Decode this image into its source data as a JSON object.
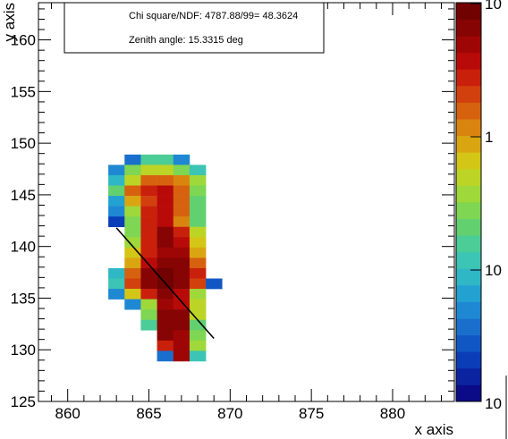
{
  "chart_data": {
    "type": "heatmap",
    "title": "",
    "xlabel": "x axis",
    "ylabel": "y axis",
    "xlim": [
      858.2,
      883.8
    ],
    "ylim": [
      125,
      163.6
    ],
    "x_ticks": [
      "860",
      "865",
      "870",
      "875",
      "880"
    ],
    "x_tick_values": [
      860,
      865,
      870,
      875,
      880
    ],
    "y_ticks": [
      "125",
      "130",
      "135",
      "140",
      "145",
      "150",
      "155",
      "160"
    ],
    "y_tick_values": [
      125,
      130,
      135,
      140,
      145,
      150,
      155,
      160
    ],
    "bin_width_x": 1,
    "bin_width_y": 1,
    "x_edges_start": 862.5,
    "y_edges_start": 128.9,
    "color_scale": "log",
    "palette": [
      "#0b0b88",
      "#0b239f",
      "#0b3db6",
      "#1157c4",
      "#1b6fcc",
      "#1f88d2",
      "#23a1d0",
      "#2fb7c6",
      "#3cc4b4",
      "#4ccc97",
      "#62d06f",
      "#7ed653",
      "#9ed83a",
      "#bcd426",
      "#d4c617",
      "#d9a612",
      "#da8410",
      "#d6620f",
      "#d2400e",
      "#c9200c",
      "#b80a09",
      "#9e0606",
      "#860404",
      "#710202"
    ],
    "colorbar_labels": [
      "10",
      "1",
      "10",
      "10"
    ],
    "cells": [
      [
        863,
        148,
        4
      ],
      [
        864,
        148,
        9
      ],
      [
        865,
        148,
        9
      ],
      [
        866,
        148,
        5
      ],
      [
        862,
        147,
        5
      ],
      [
        863,
        147,
        11
      ],
      [
        864,
        147,
        13
      ],
      [
        865,
        147,
        13
      ],
      [
        866,
        147,
        11
      ],
      [
        867,
        147,
        8
      ],
      [
        862,
        146,
        7
      ],
      [
        863,
        146,
        13
      ],
      [
        864,
        146,
        17
      ],
      [
        865,
        146,
        17
      ],
      [
        866,
        146,
        16
      ],
      [
        867,
        146,
        12
      ],
      [
        862,
        145,
        10
      ],
      [
        863,
        145,
        17
      ],
      [
        864,
        145,
        19
      ],
      [
        865,
        145,
        20
      ],
      [
        866,
        145,
        17
      ],
      [
        867,
        145,
        11
      ],
      [
        862,
        144,
        6
      ],
      [
        863,
        144,
        15
      ],
      [
        864,
        144,
        18
      ],
      [
        865,
        144,
        20
      ],
      [
        866,
        144,
        17
      ],
      [
        867,
        144,
        10
      ],
      [
        862,
        143,
        5
      ],
      [
        863,
        143,
        12
      ],
      [
        864,
        143,
        19
      ],
      [
        865,
        143,
        20
      ],
      [
        866,
        143,
        17
      ],
      [
        867,
        143,
        10
      ],
      [
        862,
        142,
        2
      ],
      [
        863,
        142,
        11
      ],
      [
        864,
        142,
        19
      ],
      [
        865,
        142,
        20
      ],
      [
        866,
        142,
        16
      ],
      [
        867,
        142,
        10
      ],
      [
        863,
        141,
        11
      ],
      [
        864,
        141,
        19
      ],
      [
        865,
        141,
        22
      ],
      [
        866,
        141,
        19
      ],
      [
        867,
        141,
        13
      ],
      [
        863,
        140,
        12
      ],
      [
        864,
        140,
        19
      ],
      [
        865,
        140,
        22
      ],
      [
        866,
        140,
        20
      ],
      [
        867,
        140,
        14
      ],
      [
        863,
        139,
        14
      ],
      [
        864,
        139,
        19
      ],
      [
        865,
        139,
        21
      ],
      [
        866,
        139,
        21
      ],
      [
        867,
        139,
        15
      ],
      [
        863,
        138,
        15
      ],
      [
        864,
        138,
        20
      ],
      [
        865,
        138,
        22
      ],
      [
        866,
        138,
        22
      ],
      [
        867,
        138,
        17
      ],
      [
        862,
        137,
        7
      ],
      [
        863,
        137,
        17
      ],
      [
        864,
        137,
        22
      ],
      [
        865,
        137,
        23
      ],
      [
        866,
        137,
        22
      ],
      [
        867,
        137,
        19
      ],
      [
        862,
        136,
        8
      ],
      [
        863,
        136,
        18
      ],
      [
        864,
        136,
        22
      ],
      [
        865,
        136,
        23
      ],
      [
        866,
        136,
        22
      ],
      [
        867,
        136,
        18
      ],
      [
        868,
        136,
        3
      ],
      [
        862,
        135,
        5
      ],
      [
        863,
        135,
        14
      ],
      [
        864,
        135,
        19
      ],
      [
        865,
        135,
        22
      ],
      [
        866,
        135,
        20
      ],
      [
        867,
        135,
        12
      ],
      [
        863,
        134,
        5
      ],
      [
        864,
        134,
        12
      ],
      [
        865,
        134,
        21
      ],
      [
        866,
        134,
        20
      ],
      [
        867,
        134,
        13
      ],
      [
        864,
        133,
        11
      ],
      [
        865,
        133,
        22
      ],
      [
        866,
        133,
        22
      ],
      [
        867,
        133,
        13
      ],
      [
        864,
        132,
        9
      ],
      [
        865,
        132,
        22
      ],
      [
        866,
        132,
        22
      ],
      [
        867,
        132,
        10
      ],
      [
        865,
        131,
        22
      ],
      [
        866,
        131,
        21
      ],
      [
        867,
        131,
        11
      ],
      [
        865,
        130,
        19
      ],
      [
        866,
        130,
        21
      ],
      [
        867,
        130,
        12
      ],
      [
        865,
        129,
        4
      ],
      [
        866,
        129,
        21
      ],
      [
        867,
        129,
        8
      ]
    ],
    "fit_line": {
      "x": [
        863.0,
        869.0
      ],
      "y": [
        141.8,
        131.1
      ]
    },
    "stats_box": {
      "line1": "Chi square/NDF: 4787.88/99= 48.3624",
      "line2": "Zenith angle: 15.3315 deg"
    }
  }
}
